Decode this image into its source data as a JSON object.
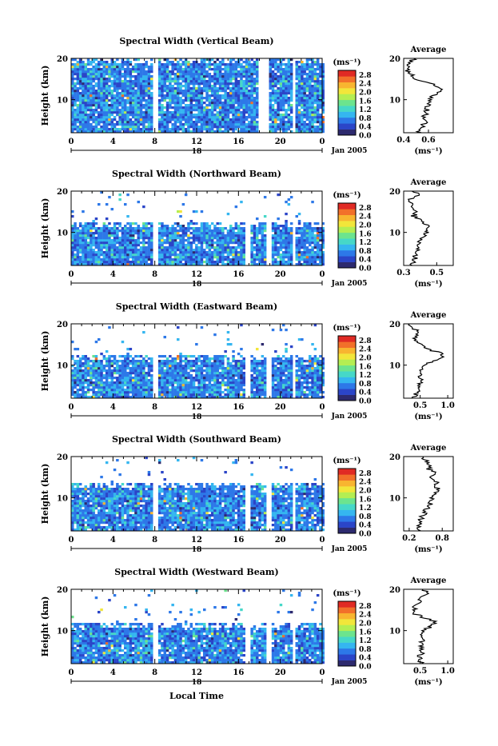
{
  "colorbar": {
    "unit_label": "(ms⁻¹)",
    "tick_labels": [
      "2.8",
      "2.4",
      "2.0",
      "1.6",
      "1.2",
      "0.8",
      "0.4",
      "0.0"
    ],
    "colors": [
      "#2d2a6e",
      "#2b45c8",
      "#2d78e8",
      "#35b6f0",
      "#46d8c8",
      "#6ce48e",
      "#b4ee52",
      "#f2e63a",
      "#f8b530",
      "#f2702a",
      "#e02a24"
    ]
  },
  "shared": {
    "ylabel": "Height (km)",
    "ytick_labels": [
      "20",
      "10"
    ],
    "xtick_labels": [
      "0",
      "4",
      "8",
      "12",
      "16",
      "20",
      "0"
    ],
    "date_day": "18",
    "date_month": "Jan 2005",
    "xlabel": "Local Time",
    "average_title": "Average",
    "average_xlabel": "(ms⁻¹)",
    "average_ytick_labels": [
      "20",
      "10"
    ]
  },
  "chart_data": [
    {
      "type": "heatmap",
      "title": "Spectral Width (Vertical Beam)",
      "x_range_hours": [
        0,
        24
      ],
      "y_range_km": [
        2,
        20
      ],
      "z_range": [
        0.0,
        3.0
      ],
      "gaps_hours": [
        [
          7.8,
          8.2
        ],
        [
          17.8,
          18.7
        ],
        [
          21.0,
          21.4
        ]
      ],
      "top_km": 20,
      "average_profile": {
        "xlim": [
          0.4,
          0.8
        ],
        "xtick_labels": [
          "0.4",
          "0.6"
        ],
        "height_km": [
          2,
          3,
          4,
          5,
          6,
          7,
          8,
          9,
          10,
          11,
          12,
          13,
          14,
          15,
          16,
          17,
          18,
          19,
          20
        ],
        "values": [
          0.52,
          0.55,
          0.56,
          0.58,
          0.57,
          0.59,
          0.58,
          0.6,
          0.62,
          0.64,
          0.68,
          0.7,
          0.62,
          0.5,
          0.46,
          0.42,
          0.44,
          0.46,
          0.48
        ]
      }
    },
    {
      "type": "heatmap",
      "title": "Spectral Width (Northward Beam)",
      "x_range_hours": [
        0,
        24
      ],
      "y_range_km": [
        2,
        20
      ],
      "z_range": [
        0.0,
        3.0
      ],
      "gaps_hours": [
        [
          7.8,
          8.2
        ],
        [
          16.6,
          16.9
        ],
        [
          18.6,
          19.1
        ],
        [
          21.0,
          21.4
        ]
      ],
      "top_km": 12.5,
      "average_profile": {
        "xlim": [
          0.3,
          0.6
        ],
        "xtick_labels": [
          "0.3",
          "0.5"
        ],
        "height_km": [
          2,
          3,
          4,
          5,
          6,
          7,
          8,
          9,
          10,
          11,
          12,
          13,
          14,
          15,
          16,
          17,
          18,
          19,
          20
        ],
        "values": [
          0.34,
          0.36,
          0.37,
          0.38,
          0.38,
          0.39,
          0.4,
          0.42,
          0.44,
          0.45,
          0.44,
          0.4,
          0.36,
          0.38,
          0.34,
          0.36,
          0.33,
          0.4,
          0.35
        ]
      }
    },
    {
      "type": "heatmap",
      "title": "Spectral Width (Eastward Beam)",
      "x_range_hours": [
        0,
        24
      ],
      "y_range_km": [
        2,
        20
      ],
      "z_range": [
        0.0,
        3.0
      ],
      "gaps_hours": [
        [
          7.8,
          8.2
        ],
        [
          16.6,
          16.9
        ],
        [
          18.6,
          19.1
        ],
        [
          21.0,
          21.4
        ]
      ],
      "top_km": 13,
      "average_profile": {
        "xlim": [
          0.2,
          1.1
        ],
        "xtick_labels": [
          "0.5",
          "1.0"
        ],
        "height_km": [
          2,
          3,
          4,
          5,
          6,
          7,
          8,
          9,
          10,
          11,
          12,
          13,
          14,
          15,
          16,
          17,
          18,
          19,
          20
        ],
        "values": [
          0.38,
          0.42,
          0.46,
          0.48,
          0.5,
          0.52,
          0.5,
          0.55,
          0.6,
          0.72,
          0.92,
          0.85,
          0.6,
          0.5,
          0.45,
          0.4,
          0.48,
          0.35,
          0.3
        ]
      }
    },
    {
      "type": "heatmap",
      "title": "Spectral Width (Southward Beam)",
      "x_range_hours": [
        0,
        24
      ],
      "y_range_km": [
        2,
        20
      ],
      "z_range": [
        0.0,
        3.0
      ],
      "gaps_hours": [
        [
          7.8,
          8.2
        ],
        [
          16.6,
          16.9
        ],
        [
          18.6,
          19.1
        ],
        [
          21.0,
          21.4
        ]
      ],
      "top_km": 14,
      "average_profile": {
        "xlim": [
          0.1,
          1.0
        ],
        "xtick_labels": [
          "0.2",
          "0.8"
        ],
        "height_km": [
          2,
          3,
          4,
          5,
          6,
          7,
          8,
          9,
          10,
          11,
          12,
          13,
          14,
          15,
          16,
          17,
          18,
          19,
          20
        ],
        "values": [
          0.36,
          0.38,
          0.4,
          0.42,
          0.46,
          0.5,
          0.55,
          0.6,
          0.62,
          0.66,
          0.72,
          0.68,
          0.7,
          0.62,
          0.7,
          0.55,
          0.6,
          0.5,
          0.45
        ]
      }
    },
    {
      "type": "heatmap",
      "title": "Spectral Width (Westward Beam)",
      "x_range_hours": [
        0,
        24
      ],
      "y_range_km": [
        2,
        20
      ],
      "z_range": [
        0.0,
        3.0
      ],
      "gaps_hours": [
        [
          7.8,
          8.2
        ],
        [
          16.6,
          16.9
        ],
        [
          18.6,
          19.1
        ],
        [
          21.0,
          21.4
        ]
      ],
      "top_km": 12,
      "average_profile": {
        "xlim": [
          0.2,
          1.1
        ],
        "xtick_labels": [
          "0.5",
          "1.0"
        ],
        "height_km": [
          2,
          3,
          4,
          5,
          6,
          7,
          8,
          9,
          10,
          11,
          12,
          13,
          14,
          15,
          16,
          17,
          18,
          19,
          20
        ],
        "values": [
          0.5,
          0.52,
          0.5,
          0.55,
          0.52,
          0.5,
          0.55,
          0.52,
          0.58,
          0.68,
          0.78,
          0.6,
          0.42,
          0.38,
          0.4,
          0.52,
          0.45,
          0.62,
          0.55
        ]
      }
    }
  ]
}
